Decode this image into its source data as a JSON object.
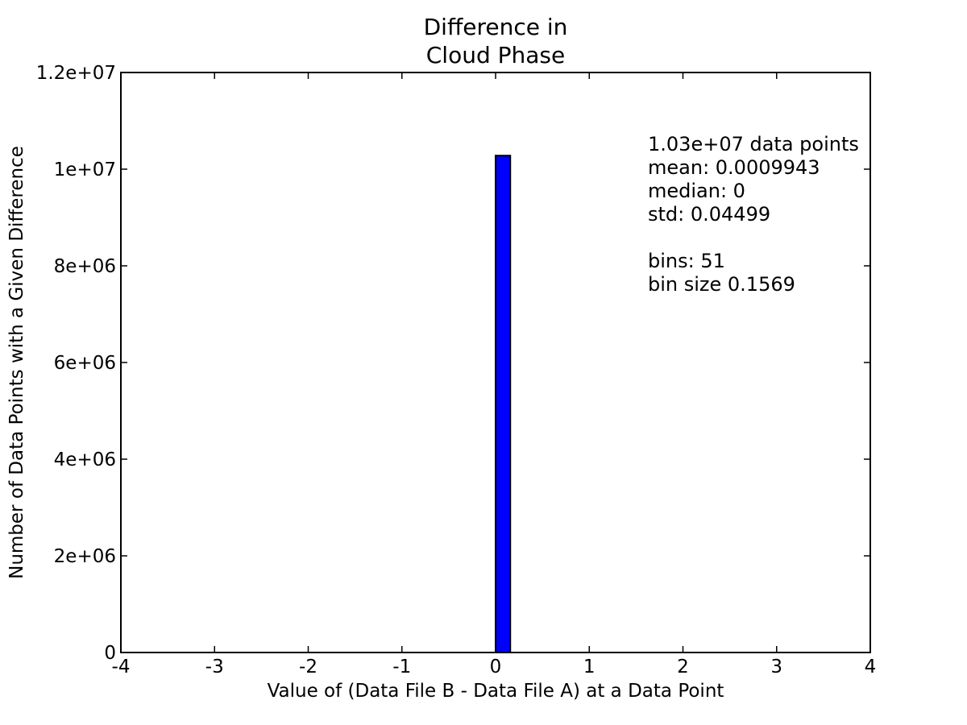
{
  "chart_data": {
    "type": "bar",
    "title_line1": "Difference in",
    "title_line2": "Cloud Phase",
    "xlabel": "Value of (Data File B - Data File A) at a Data Point",
    "ylabel": "Number of Data Points with a Given Difference",
    "xlim": [
      -4,
      4
    ],
    "ylim": [
      0,
      12000000
    ],
    "x_ticks": [
      -4,
      -3,
      -2,
      -1,
      0,
      1,
      2,
      3,
      4
    ],
    "x_tick_labels": [
      "-4",
      "-3",
      "-2",
      "-1",
      "0",
      "1",
      "2",
      "3",
      "4"
    ],
    "y_ticks": [
      0,
      2000000,
      4000000,
      6000000,
      8000000,
      10000000,
      12000000
    ],
    "y_tick_labels": [
      "0",
      "2e+06",
      "4e+06",
      "6e+06",
      "8e+06",
      "1e+07",
      "1.2e+07"
    ],
    "bars": [
      {
        "x_start": 0.0,
        "x_end": 0.1569,
        "value": 10280000
      }
    ],
    "bar_color": "#0000ff",
    "grid": false,
    "annotations": {
      "line1": "1.03e+07 data points",
      "line2": "mean: 0.0009943",
      "line3": "median: 0",
      "line4": "std: 0.04499",
      "line5": "bins: 51",
      "line6": "bin size 0.1569"
    }
  }
}
